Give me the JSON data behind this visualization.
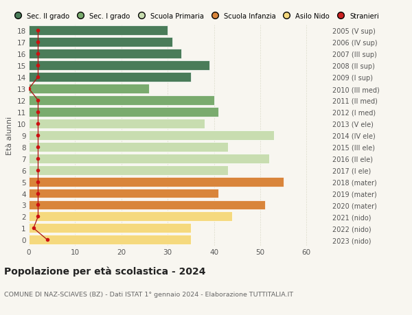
{
  "ages": [
    18,
    17,
    16,
    15,
    14,
    13,
    12,
    11,
    10,
    9,
    8,
    7,
    6,
    5,
    4,
    3,
    2,
    1,
    0
  ],
  "years_labels": [
    "2005 (V sup)",
    "2006 (IV sup)",
    "2007 (III sup)",
    "2008 (II sup)",
    "2009 (I sup)",
    "2010 (III med)",
    "2011 (II med)",
    "2012 (I med)",
    "2013 (V ele)",
    "2014 (IV ele)",
    "2015 (III ele)",
    "2016 (II ele)",
    "2017 (I ele)",
    "2018 (mater)",
    "2019 (mater)",
    "2020 (mater)",
    "2021 (nido)",
    "2022 (nido)",
    "2023 (nido)"
  ],
  "bar_values": [
    30,
    31,
    33,
    39,
    35,
    26,
    40,
    41,
    38,
    53,
    43,
    52,
    43,
    55,
    41,
    51,
    44,
    35,
    35
  ],
  "bar_colors": [
    "#4a7c59",
    "#4a7c59",
    "#4a7c59",
    "#4a7c59",
    "#4a7c59",
    "#7aab6e",
    "#7aab6e",
    "#7aab6e",
    "#c8ddb0",
    "#c8ddb0",
    "#c8ddb0",
    "#c8ddb0",
    "#c8ddb0",
    "#d9853b",
    "#d9853b",
    "#d9853b",
    "#f5d97e",
    "#f5d97e",
    "#f5d97e"
  ],
  "stranieri_x": [
    2,
    2,
    2,
    2,
    2,
    0,
    2,
    2,
    2,
    2,
    2,
    2,
    2,
    2,
    2,
    2,
    2,
    1,
    4
  ],
  "legend_labels": [
    "Sec. II grado",
    "Sec. I grado",
    "Scuola Primaria",
    "Scuola Infanzia",
    "Asilo Nido",
    "Stranieri"
  ],
  "legend_colors": [
    "#4a7c59",
    "#7aab6e",
    "#c8ddb0",
    "#d9853b",
    "#f5d97e",
    "#cc2222"
  ],
  "title": "Popolazione per età scolastica - 2024",
  "subtitle": "COMUNE DI NAZ-SCIAVES (BZ) - Dati ISTAT 1° gennaio 2024 - Elaborazione TUTTITALIA.IT",
  "ylabel": "Età alunni",
  "xlabel_ticks": [
    0,
    10,
    20,
    30,
    40,
    50,
    60
  ],
  "xlim": [
    0,
    65
  ],
  "background_color": "#f8f6f0",
  "plot_bg_color": "#f8f6f0",
  "grid_color": "#ddddcc",
  "bar_edge_color": "white",
  "stranieri_line_color": "#aa1111",
  "stranieri_dot_color": "#cc1111"
}
